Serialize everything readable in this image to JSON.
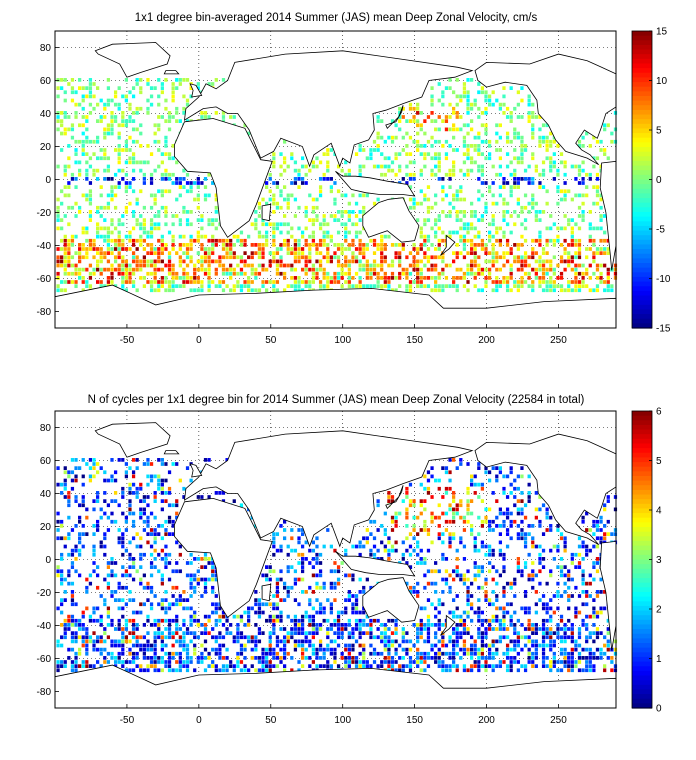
{
  "chart_data": [
    {
      "type": "heatmap",
      "title": "1x1 degree bin-averaged 2014 Summer (JAS) mean Deep Zonal Velocity, cm/s",
      "xlabel": "",
      "ylabel": "",
      "xlim": [
        -100,
        290
      ],
      "ylim": [
        -90,
        90
      ],
      "xticks": [
        -50,
        0,
        50,
        100,
        150,
        200,
        250
      ],
      "yticks": [
        80,
        60,
        40,
        20,
        0,
        -20,
        -40,
        -60,
        -80
      ],
      "grid": true,
      "colorbar": {
        "colormap": "jet",
        "range": [
          -15,
          15
        ],
        "ticks": [
          15,
          10,
          5,
          0,
          -5,
          -10,
          -15
        ]
      }
    },
    {
      "type": "heatmap",
      "title": "N of cycles per 1x1 degree bin for 2014 Summer (JAS) mean Deep Zonal Velocity (22584 in total)",
      "xlabel": "",
      "ylabel": "",
      "xlim": [
        -100,
        290
      ],
      "ylim": [
        -90,
        90
      ],
      "xticks": [
        -50,
        0,
        50,
        100,
        150,
        200,
        250
      ],
      "yticks": [
        80,
        60,
        40,
        20,
        0,
        -20,
        -40,
        -60,
        -80
      ],
      "grid": true,
      "colorbar": {
        "colormap": "jet",
        "range": [
          0,
          6
        ],
        "ticks": [
          6,
          5,
          4,
          3,
          2,
          1,
          0
        ]
      }
    }
  ]
}
